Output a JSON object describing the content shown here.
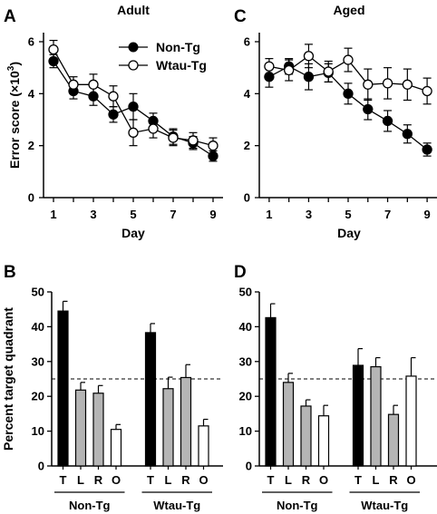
{
  "figure": {
    "panel_labels": [
      "A",
      "B",
      "C",
      "D"
    ],
    "legend": [
      "Non-Tg",
      "Wtau-Tg"
    ]
  },
  "chart_data": [
    {
      "type": "line",
      "panel": "A",
      "title": "Adult",
      "xlabel": "Day",
      "ylabel": "Error score (×10³)",
      "ylabel_prefix": "Error score (×10",
      "ylabel_exp": "3",
      "ylabel_suffix": ")",
      "xlim": [
        0.5,
        9.5
      ],
      "ylim": [
        0,
        6
      ],
      "xticks": [
        1,
        3,
        5,
        7,
        9
      ],
      "yticks": [
        0,
        2,
        4,
        6
      ],
      "x": [
        1,
        2,
        3,
        4,
        5,
        6,
        7,
        8,
        9
      ],
      "series": [
        {
          "name": "Non-Tg",
          "marker": "filled",
          "values": [
            5.25,
            4.1,
            3.9,
            3.2,
            3.5,
            2.95,
            2.35,
            2.1,
            1.6
          ],
          "errors": [
            0.25,
            0.3,
            0.35,
            0.3,
            0.5,
            0.3,
            0.3,
            0.25,
            0.2
          ]
        },
        {
          "name": "Wtau-Tg",
          "marker": "open",
          "values": [
            5.7,
            4.35,
            4.35,
            3.9,
            2.5,
            2.65,
            2.3,
            2.2,
            2.0
          ],
          "errors": [
            0.35,
            0.3,
            0.4,
            0.4,
            0.5,
            0.35,
            0.3,
            0.3,
            0.3
          ]
        }
      ]
    },
    {
      "type": "line",
      "panel": "C",
      "title": "Aged",
      "xlabel": "Day",
      "ylabel": "",
      "xlim": [
        0.5,
        9.5
      ],
      "ylim": [
        0,
        6
      ],
      "xticks": [
        1,
        3,
        5,
        7,
        9
      ],
      "yticks": [
        0,
        2,
        4,
        6
      ],
      "x": [
        1,
        2,
        3,
        4,
        5,
        6,
        7,
        8,
        9
      ],
      "series": [
        {
          "name": "Non-Tg",
          "marker": "filled",
          "values": [
            4.65,
            5.05,
            4.65,
            4.8,
            4.0,
            3.4,
            2.95,
            2.45,
            1.85
          ],
          "errors": [
            0.4,
            0.3,
            0.5,
            0.35,
            0.4,
            0.4,
            0.4,
            0.35,
            0.25
          ]
        },
        {
          "name": "Wtau-Tg",
          "marker": "open",
          "values": [
            5.05,
            4.9,
            5.45,
            4.85,
            5.3,
            4.35,
            4.4,
            4.35,
            4.1
          ],
          "errors": [
            0.3,
            0.4,
            0.45,
            0.4,
            0.45,
            0.6,
            0.6,
            0.6,
            0.5
          ]
        }
      ]
    },
    {
      "type": "bar",
      "panel": "B",
      "title": "",
      "xlabel": "",
      "ylabel": "Percent target quadrant",
      "ylim": [
        0,
        50
      ],
      "yticks": [
        0,
        10,
        20,
        30,
        40,
        50
      ],
      "reference_line": 25,
      "groups": [
        {
          "name": "Non-Tg",
          "categories": [
            "T",
            "L",
            "R",
            "O"
          ],
          "values": [
            44.5,
            21.8,
            20.9,
            10.5
          ],
          "errors": [
            2.8,
            2.2,
            2.2,
            1.4
          ]
        },
        {
          "name": "Wtau-Tg",
          "categories": [
            "T",
            "L",
            "R",
            "O"
          ],
          "values": [
            38.3,
            22.2,
            25.4,
            11.5
          ],
          "errors": [
            2.6,
            3.3,
            3.7,
            1.9
          ]
        }
      ],
      "bar_colors": [
        "#000000",
        "#b5b5b5",
        "#b5b5b5",
        "#ffffff"
      ]
    },
    {
      "type": "bar",
      "panel": "D",
      "title": "",
      "xlabel": "",
      "ylabel": "",
      "ylim": [
        0,
        50
      ],
      "yticks": [
        0,
        10,
        20,
        30,
        40,
        50
      ],
      "reference_line": 25,
      "groups": [
        {
          "name": "Non-Tg",
          "categories": [
            "T",
            "L",
            "R",
            "O"
          ],
          "values": [
            42.6,
            24.0,
            17.2,
            14.4
          ],
          "errors": [
            4.0,
            2.6,
            1.8,
            3.0
          ]
        },
        {
          "name": "Wtau-Tg",
          "categories": [
            "T",
            "L",
            "R",
            "O"
          ],
          "values": [
            28.9,
            28.5,
            14.8,
            25.8
          ],
          "errors": [
            4.8,
            2.6,
            2.6,
            5.3
          ]
        }
      ],
      "bar_colors": [
        "#000000",
        "#b5b5b5",
        "#b5b5b5",
        "#ffffff"
      ]
    }
  ]
}
